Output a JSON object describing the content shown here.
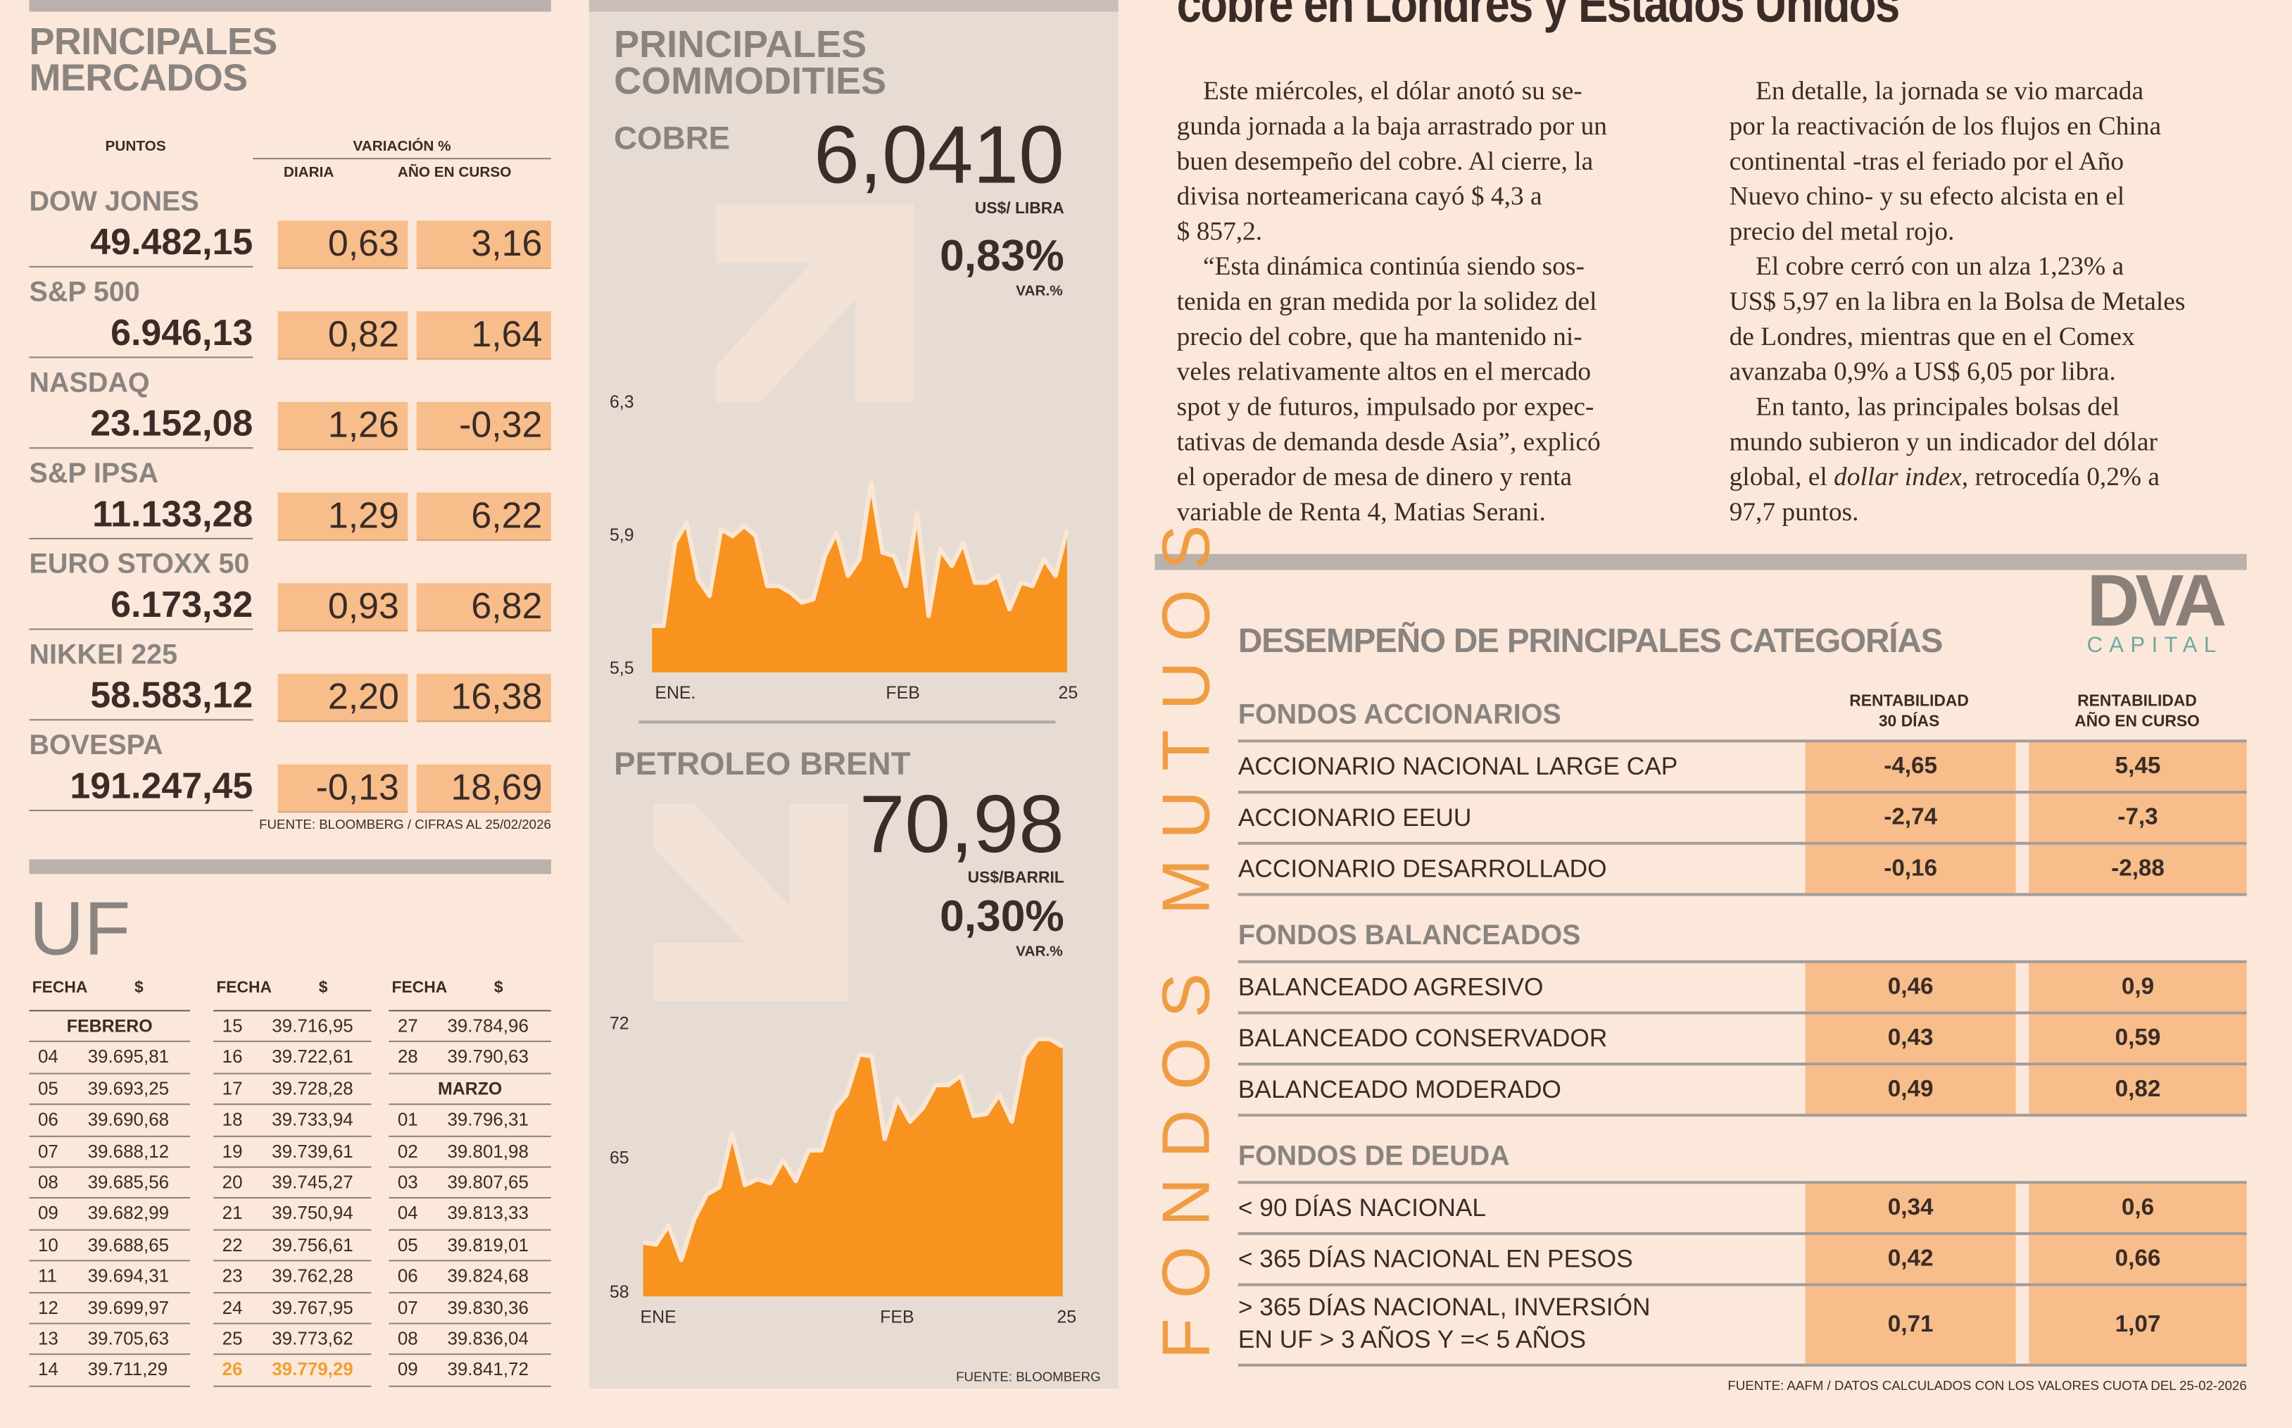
{
  "markets": {
    "title_line1": "PRINCIPALES",
    "title_line2": "MERCADOS",
    "col_points": "PUNTOS",
    "col_variation": "VARIACIÓN %",
    "col_daily": "DIARIA",
    "col_ytd": "AÑO EN CURSO",
    "rows": [
      {
        "name": "DOW JONES",
        "points": "49.482,15",
        "daily": "0,63",
        "ytd": "3,16"
      },
      {
        "name": "S&P 500",
        "points": "6.946,13",
        "daily": "0,82",
        "ytd": "1,64"
      },
      {
        "name": "NASDAQ",
        "points": "23.152,08",
        "daily": "1,26",
        "ytd": "-0,32"
      },
      {
        "name": "S&P IPSA",
        "points": "11.133,28",
        "daily": "1,29",
        "ytd": "6,22"
      },
      {
        "name": "EURO STOXX 50",
        "points": "6.173,32",
        "daily": "0,93",
        "ytd": "6,82"
      },
      {
        "name": "NIKKEI 225",
        "points": "58.583,12",
        "daily": "2,20",
        "ytd": "16,38"
      },
      {
        "name": "BOVESPA",
        "points": "191.247,45",
        "daily": "-0,13",
        "ytd": "18,69"
      }
    ],
    "source": "FUENTE: BLOOMBERG  / CIFRAS AL 25/02/2026"
  },
  "uf": {
    "title": "UF",
    "col_date": "FECHA",
    "col_value": "$",
    "highlight_color": "#f0a030",
    "columns": [
      [
        {
          "month": "FEBRERO"
        },
        {
          "date": "04",
          "value": "39.695,81"
        },
        {
          "date": "05",
          "value": "39.693,25"
        },
        {
          "date": "06",
          "value": "39.690,68"
        },
        {
          "date": "07",
          "value": "39.688,12"
        },
        {
          "date": "08",
          "value": "39.685,56"
        },
        {
          "date": "09",
          "value": "39.682,99"
        },
        {
          "date": "10",
          "value": "39.688,65"
        },
        {
          "date": "11",
          "value": "39.694,31"
        },
        {
          "date": "12",
          "value": "39.699,97"
        },
        {
          "date": "13",
          "value": "39.705,63"
        },
        {
          "date": "14",
          "value": "39.711,29"
        }
      ],
      [
        {
          "date": "15",
          "value": "39.716,95"
        },
        {
          "date": "16",
          "value": "39.722,61"
        },
        {
          "date": "17",
          "value": "39.728,28"
        },
        {
          "date": "18",
          "value": "39.733,94"
        },
        {
          "date": "19",
          "value": "39.739,61"
        },
        {
          "date": "20",
          "value": "39.745,27"
        },
        {
          "date": "21",
          "value": "39.750,94"
        },
        {
          "date": "22",
          "value": "39.756,61"
        },
        {
          "date": "23",
          "value": "39.762,28"
        },
        {
          "date": "24",
          "value": "39.767,95"
        },
        {
          "date": "25",
          "value": "39.773,62"
        },
        {
          "date": "26",
          "value": "39.779,29",
          "highlight": true
        }
      ],
      [
        {
          "date": "27",
          "value": "39.784,96"
        },
        {
          "date": "28",
          "value": "39.790,63"
        },
        {
          "month": "MARZO"
        },
        {
          "date": "01",
          "value": "39.796,31"
        },
        {
          "date": "02",
          "value": "39.801,98"
        },
        {
          "date": "03",
          "value": "39.807,65"
        },
        {
          "date": "04",
          "value": "39.813,33"
        },
        {
          "date": "05",
          "value": "39.819,01"
        },
        {
          "date": "06",
          "value": "39.824,68"
        },
        {
          "date": "07",
          "value": "39.830,36"
        },
        {
          "date": "08",
          "value": "39.836,04"
        },
        {
          "date": "09",
          "value": "39.841,72"
        }
      ]
    ]
  },
  "commodities": {
    "title_line1": "PRINCIPALES",
    "title_line2": "COMMODITIES",
    "copper": {
      "name": "COBRE",
      "price": "6,0410",
      "unit": "US$/ LIBRA",
      "change": "0,83%",
      "change_label": "VAR.%",
      "trend": "up"
    },
    "brent": {
      "name": "PETROLEO BRENT",
      "price": "70,98",
      "unit": "US$/BARRIL",
      "change": "0,30%",
      "change_label": "VAR.%",
      "trend": "down"
    },
    "source": "FUENTE: BLOOMBERG"
  },
  "chart_data": [
    {
      "type": "area",
      "title": "COBRE",
      "ylabel": "US$/libra",
      "ylim": [
        5.5,
        6.3
      ],
      "yticks": [
        "6,3",
        "5,9",
        "5,5"
      ],
      "ytick_values": [
        6.3,
        5.9,
        5.5
      ],
      "xticks": [
        "ENE.",
        "FEB",
        "25"
      ],
      "values": [
        5.64,
        5.64,
        5.89,
        5.95,
        5.78,
        5.73,
        5.93,
        5.91,
        5.94,
        5.91,
        5.76,
        5.76,
        5.74,
        5.71,
        5.72,
        5.85,
        5.92,
        5.79,
        5.84,
        6.07,
        5.86,
        5.85,
        5.76,
        5.98,
        5.67,
        5.87,
        5.82,
        5.89,
        5.77,
        5.77,
        5.79,
        5.69,
        5.77,
        5.76,
        5.84,
        5.79,
        5.93
      ],
      "fill_color": "#f7931e",
      "line_color": "#fbe6d4"
    },
    {
      "type": "area",
      "title": "PETROLEO BRENT",
      "ylabel": "US$/barril",
      "ylim": [
        58,
        72
      ],
      "yticks": [
        "72",
        "65",
        "58"
      ],
      "ytick_values": [
        72,
        65,
        58
      ],
      "xticks": [
        "ENE",
        "FEB",
        "25"
      ],
      "values": [
        60.8,
        60.7,
        61.7,
        59.9,
        62.0,
        63.3,
        63.7,
        66.5,
        63.8,
        64.1,
        63.9,
        65.1,
        64.0,
        65.6,
        65.6,
        67.7,
        68.5,
        70.6,
        70.5,
        66.2,
        68.3,
        67.1,
        67.8,
        69.0,
        69.0,
        69.5,
        67.4,
        67.5,
        68.5,
        67.1,
        70.5,
        71.4,
        71.4,
        71.0
      ],
      "fill_color": "#f7931e",
      "line_color": "#fbe6d4"
    }
  ],
  "article": {
    "headline": "cobre en Londres y Estados Unidos",
    "col1": [
      {
        "text": "Este miércoles, el dólar anotó su se-",
        "indent": true
      },
      {
        "text": "gunda jornada a la baja arrastrado por un"
      },
      {
        "text": "buen desempeño del cobre. Al cierre, la"
      },
      {
        "text": "divisa norteamericana cayó $ 4,3 a"
      },
      {
        "text": "$ 857,2."
      },
      {
        "text": "“Esta dinámica continúa siendo sos-",
        "indent": true
      },
      {
        "text": "tenida en gran medida por la solidez del"
      },
      {
        "text": "precio del cobre, que ha mantenido ni-"
      },
      {
        "text": "veles relativamente altos en el mercado"
      },
      {
        "text": "spot y de futuros, impulsado por expec-"
      },
      {
        "text": "tativas de demanda desde Asia”, explicó"
      },
      {
        "text": "el operador de mesa de dinero y renta"
      },
      {
        "text": "variable de Renta 4, Matias Serani."
      }
    ],
    "col2": [
      {
        "text": "En detalle, la jornada se vio marcada",
        "indent": true
      },
      {
        "text": "por la reactivación de los flujos en China"
      },
      {
        "text": "continental -tras el feriado por el Año"
      },
      {
        "text": "Nuevo chino- y su efecto alcista en el"
      },
      {
        "text": "precio del metal rojo."
      },
      {
        "text": "El cobre cerró con un alza 1,23% a",
        "indent": true
      },
      {
        "text": "US$ 5,97 en la libra en la Bolsa de Metales"
      },
      {
        "text": "de Londres, mientras que en el Comex"
      },
      {
        "text": "avanzaba 0,9% a US$ 6,05 por libra."
      },
      {
        "text": "En tanto, las principales bolsas del",
        "indent": true
      },
      {
        "text": "mundo subieron y un indicador del dólar"
      },
      {
        "pre": "global, el ",
        "italic": "dollar index",
        "post": ", retrocedía 0,2% a"
      },
      {
        "text": "97,7 puntos."
      }
    ]
  },
  "funds": {
    "vertical_label": "FONDOS MUTUOS",
    "title": "DESEMPEÑO DE PRINCIPALES CATEGORÍAS",
    "logo_main": "DVA",
    "logo_sub": "CAPITAL",
    "col1_line1": "RENTABILIDAD",
    "col1_line2": "30 DÍAS",
    "col2_line1": "RENTABILIDAD",
    "col2_line2": "AÑO EN CURSO",
    "sections": [
      {
        "title": "FONDOS ACCIONARIOS",
        "rows": [
          {
            "label": "ACCIONARIO NACIONAL LARGE CAP",
            "r30": "-4,65",
            "ytd": "5,45"
          },
          {
            "label": "ACCIONARIO EEUU",
            "r30": "-2,74",
            "ytd": "-7,3"
          },
          {
            "label": "ACCIONARIO DESARROLLADO",
            "r30": "-0,16",
            "ytd": "-2,88"
          }
        ]
      },
      {
        "title": "FONDOS BALANCEADOS",
        "rows": [
          {
            "label": "BALANCEADO AGRESIVO",
            "r30": "0,46",
            "ytd": "0,9"
          },
          {
            "label": "BALANCEADO CONSERVADOR",
            "r30": "0,43",
            "ytd": "0,59"
          },
          {
            "label": "BALANCEADO MODERADO",
            "r30": "0,49",
            "ytd": "0,82"
          }
        ]
      },
      {
        "title": "FONDOS DE DEUDA",
        "rows": [
          {
            "label": "< 90 DÍAS NACIONAL",
            "r30": "0,34",
            "ytd": "0,6"
          },
          {
            "label": "< 365 DÍAS NACIONAL EN PESOS",
            "r30": "0,42",
            "ytd": "0,66"
          },
          {
            "label": "> 365 DÍAS NACIONAL, INVERSIÓN",
            "label2": "EN UF > 3 AÑOS Y =< 5 AÑOS",
            "r30": "0,71",
            "ytd": "1,07"
          }
        ]
      }
    ],
    "source": "FUENTE: AAFM / DATOS CALCULADOS CON LOS VALORES CUOTA DEL 25-02-2026"
  }
}
